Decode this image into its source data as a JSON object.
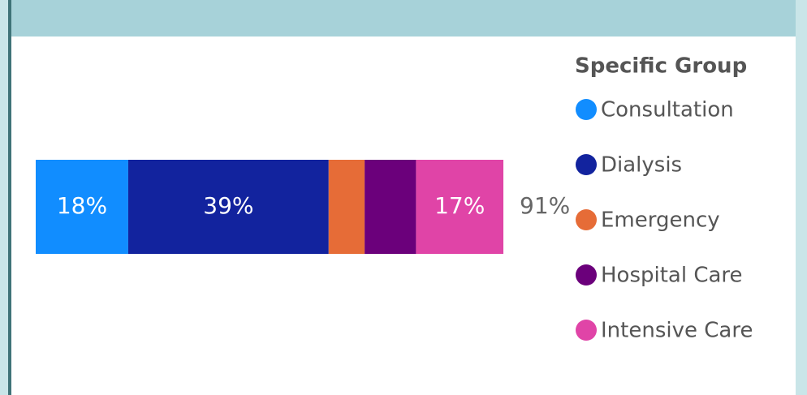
{
  "chart_data": {
    "type": "stacked-bar",
    "orientation": "horizontal",
    "legend_title": "Specific Group",
    "legend": "right",
    "categories": [
      null
    ],
    "series": [
      {
        "name": "Consultation",
        "color": "#118dff",
        "values": [
          18
        ],
        "value_labels": [
          "18%"
        ]
      },
      {
        "name": "Dialysis",
        "color": "#12239e",
        "values": [
          39
        ],
        "value_labels": [
          "39%"
        ]
      },
      {
        "name": "Emergency",
        "color": "#e66c37",
        "values": [
          7
        ],
        "value_labels": [
          null
        ]
      },
      {
        "name": "Hospital Care",
        "color": "#6b007b",
        "values": [
          10
        ],
        "value_labels": [
          null
        ]
      },
      {
        "name": "Intensive Care",
        "color": "#e044a7",
        "values": [
          17
        ],
        "value_labels": [
          "17%"
        ]
      }
    ],
    "totals": [
      91
    ],
    "total_labels": [
      "91%"
    ],
    "xlim": [
      0,
      100
    ]
  }
}
